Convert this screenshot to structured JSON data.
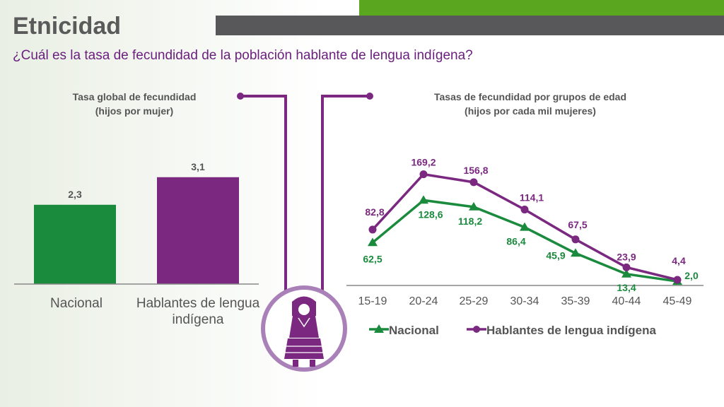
{
  "header": {
    "title": "Etnicidad",
    "subtitle": "¿Cuál es la tasa de fecundidad de la población hablante de lengua indígena?"
  },
  "colors": {
    "green": "#1a8a3c",
    "purple": "#7a2880",
    "accent_green": "#5aa61e",
    "header_gray": "#58585a"
  },
  "icon": "indigenous-woman-icon",
  "chart_data": [
    {
      "type": "bar",
      "title": "Tasa global de fecundidad",
      "subtitle": "(hijos por mujer)",
      "categories": [
        "Nacional",
        "Hablantes de lengua indígena"
      ],
      "values": [
        2.3,
        3.1
      ],
      "value_labels": [
        "2,3",
        "3,1"
      ],
      "colors": [
        "#1a8a3c",
        "#7a2880"
      ],
      "ylim": [
        0,
        4.1
      ]
    },
    {
      "type": "line",
      "title": "Tasas de fecundidad por grupos de edad",
      "subtitle": "(hijos por cada mil mujeres)",
      "categories": [
        "15-19",
        "20-24",
        "25-29",
        "30-34",
        "35-39",
        "40-44",
        "45-49"
      ],
      "ylim": [
        0,
        182
      ],
      "legend": "bottom",
      "series": [
        {
          "name": "Nacional",
          "color": "#1a8a3c",
          "marker": "triangle",
          "values": [
            62.5,
            128.6,
            118.2,
            86.4,
            45.9,
            13.4,
            2.0
          ],
          "labels": [
            "62,5",
            "128,6",
            "118,2",
            "86,4",
            "45,9",
            "13,4",
            "2,0"
          ]
        },
        {
          "name": "Hablantes de lengua indígena",
          "color": "#7a2880",
          "marker": "circle",
          "values": [
            82.8,
            169.2,
            156.8,
            114.1,
            67.5,
            23.9,
            4.4
          ],
          "labels": [
            "82,8",
            "169,2",
            "156,8",
            "114,1",
            "67,5",
            "23,9",
            "4,4"
          ]
        }
      ]
    }
  ]
}
